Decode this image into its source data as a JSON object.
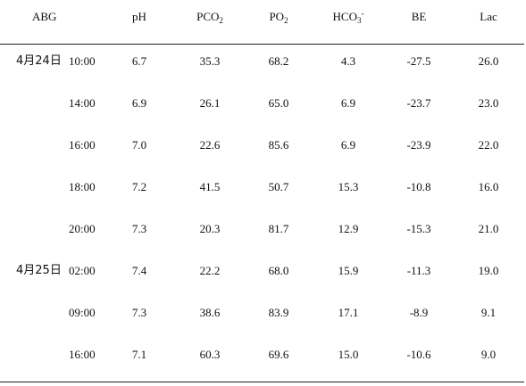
{
  "table": {
    "headers": {
      "abg": "ABG",
      "ph": "pH",
      "pco2_main": "PCO",
      "pco2_sub": "2",
      "po2_main": "PO",
      "po2_sub": "2",
      "hco3_main": "HCO",
      "hco3_sub": "3",
      "hco3_sup": "-",
      "be": "BE",
      "lac": "Lac"
    },
    "rows": [
      {
        "date": "4月24日",
        "time": "10:00",
        "ph": "6.7",
        "pco2": "35.3",
        "po2": "68.2",
        "hco3": "4.3",
        "be": "-27.5",
        "lac": "26.0"
      },
      {
        "date": "",
        "time": "14:00",
        "ph": "6.9",
        "pco2": "26.1",
        "po2": "65.0",
        "hco3": "6.9",
        "be": "-23.7",
        "lac": "23.0"
      },
      {
        "date": "",
        "time": "16:00",
        "ph": "7.0",
        "pco2": "22.6",
        "po2": "85.6",
        "hco3": "6.9",
        "be": "-23.9",
        "lac": "22.0"
      },
      {
        "date": "",
        "time": "18:00",
        "ph": "7.2",
        "pco2": "41.5",
        "po2": "50.7",
        "hco3": "15.3",
        "be": "-10.8",
        "lac": "16.0"
      },
      {
        "date": "",
        "time": "20:00",
        "ph": "7.3",
        "pco2": "20.3",
        "po2": "81.7",
        "hco3": "12.9",
        "be": "-15.3",
        "lac": "21.0"
      },
      {
        "date": "4月25日",
        "time": "02:00",
        "ph": "7.4",
        "pco2": "22.2",
        "po2": "68.0",
        "hco3": "15.9",
        "be": "-11.3",
        "lac": "19.0"
      },
      {
        "date": "",
        "time": "09:00",
        "ph": "7.3",
        "pco2": "38.6",
        "po2": "83.9",
        "hco3": "17.1",
        "be": "-8.9",
        "lac": "9.1"
      },
      {
        "date": "",
        "time": "16:00",
        "ph": "7.1",
        "pco2": "60.3",
        "po2": "69.6",
        "hco3": "15.0",
        "be": "-10.6",
        "lac": "9.0"
      }
    ]
  }
}
